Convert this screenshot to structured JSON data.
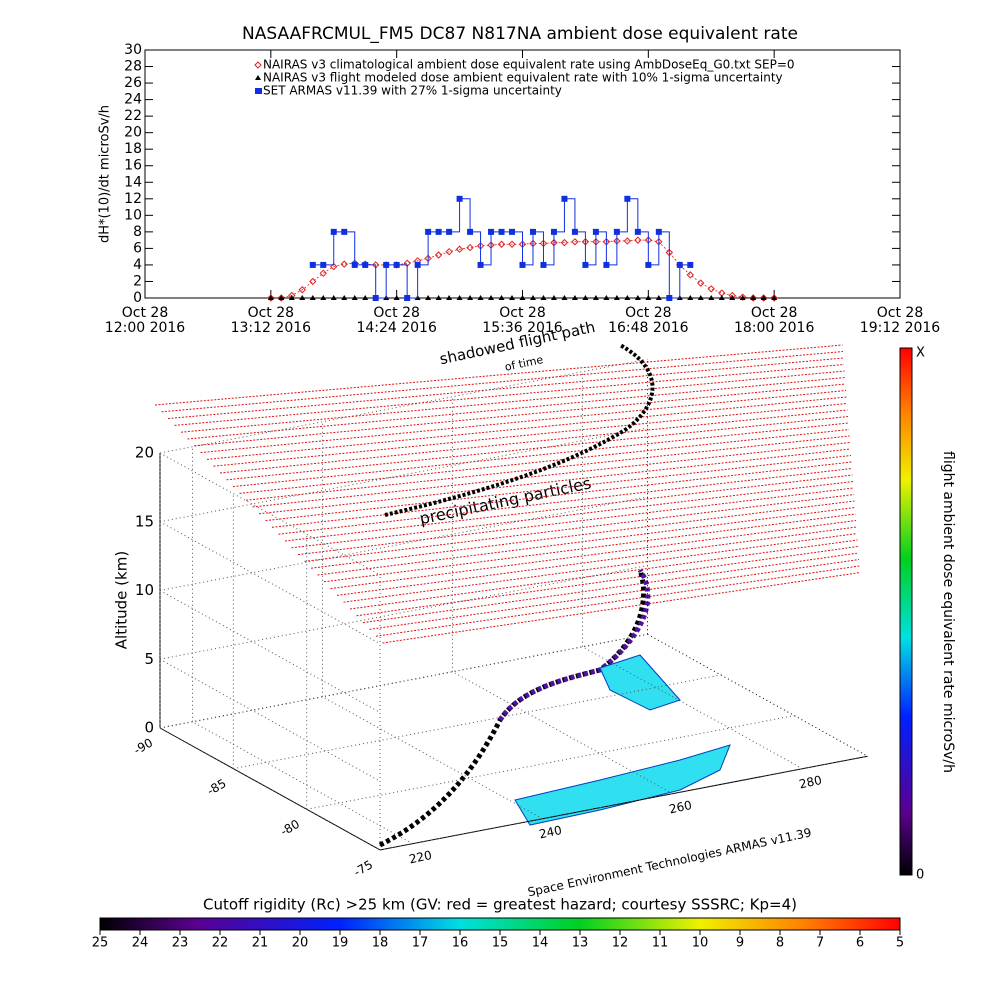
{
  "chart_data": [
    {
      "type": "line",
      "title": "NASAAFRCMUL_FM5 DC87 N817NA ambient dose equivalent rate",
      "y_label": "dH*(10)/dt microSv/h",
      "xlim": [
        12,
        19.2
      ],
      "xticks": [
        {
          "value": 12,
          "label": "Oct 28\n12:00 2016"
        },
        {
          "value": 13.2,
          "label": "Oct 28\n13:12 2016"
        },
        {
          "value": 14.4,
          "label": "Oct 28\n14:24 2016"
        },
        {
          "value": 15.6,
          "label": "Oct 28\n15:36 2016"
        },
        {
          "value": 16.8,
          "label": "Oct 28\n16:48 2016"
        },
        {
          "value": 18,
          "label": "Oct 28\n18:00 2016"
        },
        {
          "value": 19.2,
          "label": "Oct 28\n19:12 2016"
        }
      ],
      "ylim": [
        0,
        30
      ],
      "yticks": [
        0,
        2,
        4,
        6,
        8,
        10,
        12,
        14,
        16,
        18,
        20,
        22,
        24,
        26,
        28,
        30
      ],
      "x": [
        13.2,
        13.3,
        13.4,
        13.5,
        13.6,
        13.7,
        13.8,
        13.9,
        14.0,
        14.1,
        14.2,
        14.3,
        14.4,
        14.5,
        14.6,
        14.7,
        14.8,
        14.9,
        15.0,
        15.1,
        15.2,
        15.3,
        15.4,
        15.5,
        15.6,
        15.7,
        15.8,
        15.9,
        16.0,
        16.1,
        16.2,
        16.3,
        16.4,
        16.5,
        16.6,
        16.7,
        16.8,
        16.9,
        17.0,
        17.1,
        17.2,
        17.3,
        17.4,
        17.5,
        17.6,
        17.7,
        17.8,
        17.9,
        18.0
      ],
      "series": [
        {
          "name": "NAIRAS v3 climatological ambient dose equivalent rate using AmbDoseEq_G0.txt SEP=0",
          "color": "#e02020",
          "values": [
            0,
            0,
            0.3,
            1,
            2,
            3,
            3.8,
            4.1,
            4.2,
            4.1,
            4,
            4,
            4,
            4.2,
            4.5,
            4.8,
            5.2,
            5.6,
            5.9,
            6.1,
            6.3,
            6.4,
            6.5,
            6.5,
            6.5,
            6.6,
            6.6,
            6.7,
            6.7,
            6.8,
            6.8,
            6.8,
            6.8,
            6.9,
            6.9,
            7,
            7,
            6.8,
            5.5,
            4,
            2.8,
            1.8,
            1.1,
            0.6,
            0.3,
            0.1,
            0,
            0,
            0
          ]
        },
        {
          "name": "NAIRAS v3 flight modeled dose ambient equivalent rate with 10% 1-sigma uncertainty",
          "color": "#000000",
          "values": [
            0,
            0,
            0,
            0,
            0,
            0,
            0,
            0,
            0,
            0,
            0,
            0,
            0,
            0,
            0,
            0,
            0,
            0,
            0,
            0,
            0,
            0,
            0,
            0,
            0,
            0,
            0,
            0,
            0,
            0,
            0,
            0,
            0,
            0,
            0,
            0,
            0,
            0,
            0,
            0,
            0,
            0,
            0,
            0,
            0,
            0,
            0,
            0,
            0
          ]
        },
        {
          "name": "SET ARMAS v11.39 with 27% 1-sigma uncertainty",
          "color": "#1030e0",
          "values": [
            null,
            null,
            null,
            null,
            4,
            4,
            8,
            8,
            4,
            4,
            0,
            4,
            4,
            0,
            4,
            8,
            8,
            8,
            12,
            8,
            4,
            8,
            8,
            8,
            4,
            8,
            4,
            8,
            12,
            8,
            4,
            8,
            4,
            8,
            12,
            8,
            4,
            8,
            0,
            4,
            4,
            null,
            null,
            null,
            null,
            null,
            null,
            null,
            null
          ]
        }
      ]
    },
    {
      "type": "3d",
      "z_label": "Altitude (km)",
      "zlim": [
        0,
        20
      ],
      "zticks": [
        0,
        5,
        10,
        15,
        20
      ],
      "lat_lim": [
        -90,
        -75
      ],
      "lat_ticks": [
        -90,
        -85,
        -80,
        -75
      ],
      "lon_lim": [
        215,
        290
      ],
      "lon_ticks": [
        220,
        240,
        260,
        280
      ],
      "annotations": [
        "shadowed flight path",
        "of time",
        "precipitating particles",
        "Space Environment Technologies ARMAS v11.39"
      ]
    },
    {
      "type": "colorbar",
      "orientation": "vertical",
      "label": "flight ambient dose equivalent rate microSv/h",
      "ends": [
        "0",
        "X"
      ]
    },
    {
      "type": "colorbar",
      "orientation": "horizontal",
      "title": "Cutoff rigidity (Rc) >25 km (GV: red = greatest hazard; courtesy SSSRC; Kp=4)",
      "ticks": [
        25,
        24,
        23,
        22,
        21,
        20,
        19,
        18,
        17,
        16,
        15,
        14,
        13,
        12,
        11,
        10,
        9,
        8,
        7,
        6,
        5
      ]
    }
  ]
}
